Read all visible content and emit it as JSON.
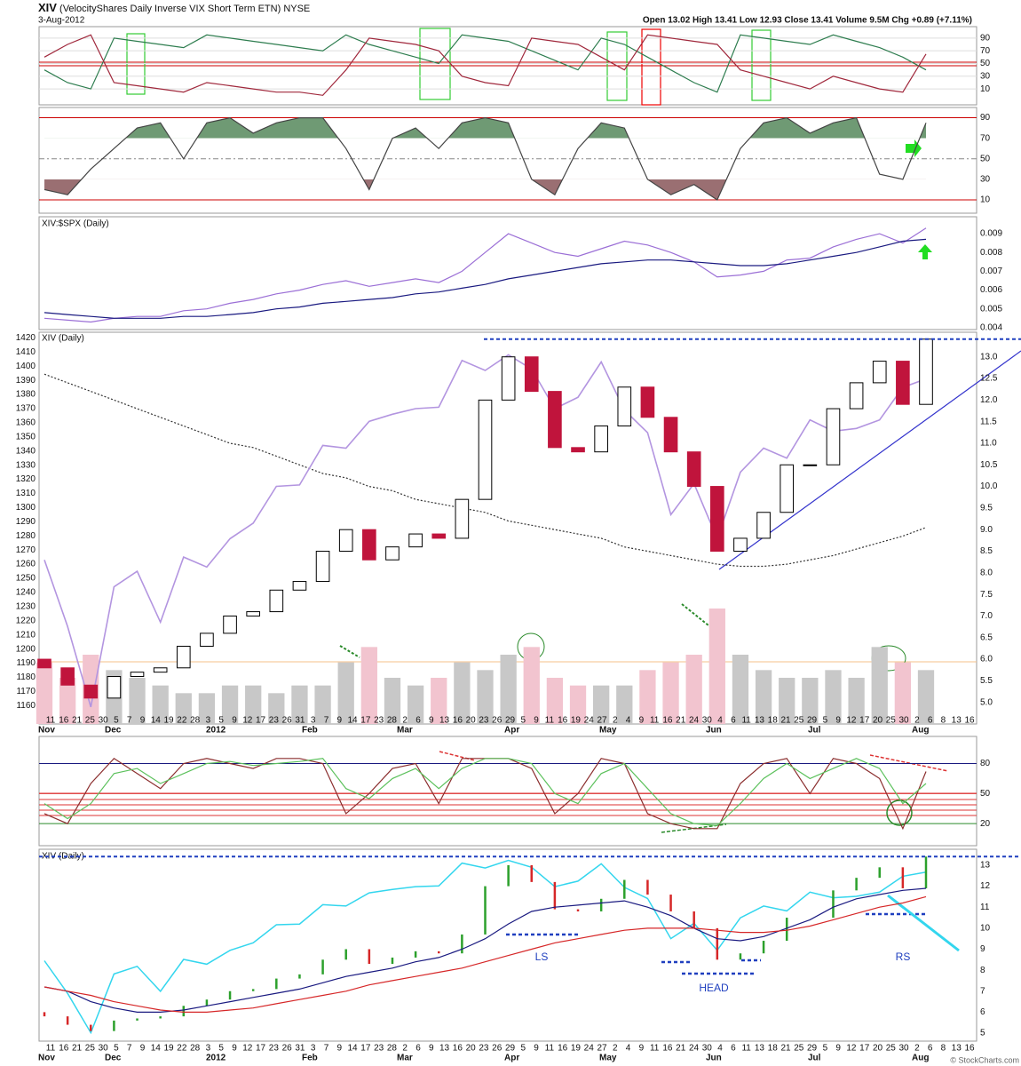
{
  "header": {
    "symbol": "XIV",
    "name": "(VelocityShares Daily Inverse VIX Short Term ETN)",
    "exchange": "NYSE",
    "date": "3-Aug-2012",
    "quote": "Open 13.02  High 13.41  Low 12.93  Close 13.41  Volume 9.5M  Chg +0.89 (+7.11%)",
    "credit": "© StockCharts.com"
  },
  "time_axis": {
    "days": [
      11,
      16,
      21,
      25,
      30,
      5,
      7,
      9,
      14,
      19,
      22,
      28,
      3,
      5,
      9,
      12,
      17,
      23,
      26,
      31,
      3,
      7,
      9,
      14,
      17,
      23,
      28,
      2,
      6,
      9,
      13,
      16,
      20,
      23,
      26,
      29,
      5,
      9,
      11,
      16,
      19,
      24,
      27,
      2,
      4,
      9,
      11,
      16,
      21,
      24,
      30,
      4,
      6,
      11,
      13,
      18,
      21,
      25,
      29,
      5,
      9,
      12,
      17,
      20,
      25,
      30,
      2,
      6,
      8,
      13,
      16
    ],
    "months": [
      "Nov",
      "Dec",
      "2012",
      "Feb",
      "Mar",
      "Apr",
      "May",
      "Jun",
      "Jul",
      "Aug"
    ]
  },
  "annotations": {
    "left_shoulder": "LS",
    "head": "HEAD",
    "right_shoulder": "RS"
  },
  "chart_data": [
    {
      "type": "line",
      "ylim": [
        -15,
        108
      ],
      "yticks": [
        10,
        30,
        50,
        70,
        90
      ],
      "series": [
        {
          "color": "#2e7d4f",
          "values": [
            40,
            20,
            10,
            90,
            85,
            80,
            75,
            95,
            90,
            85,
            80,
            75,
            70,
            95,
            80,
            70,
            60,
            50,
            95,
            90,
            85,
            70,
            55,
            40,
            90,
            80,
            60,
            40,
            20,
            5,
            95,
            90,
            85,
            80,
            95,
            85,
            75,
            60,
            40
          ]
        },
        {
          "color": "#a0283c",
          "values": [
            60,
            80,
            95,
            20,
            15,
            10,
            5,
            20,
            15,
            10,
            5,
            5,
            0,
            40,
            90,
            85,
            80,
            70,
            30,
            20,
            15,
            90,
            85,
            80,
            60,
            40,
            95,
            90,
            85,
            80,
            40,
            30,
            20,
            10,
            30,
            20,
            10,
            5,
            65
          ]
        }
      ]
    },
    {
      "type": "line",
      "ylim": [
        -3,
        100
      ],
      "yticks": [
        10,
        30,
        50,
        70,
        90
      ],
      "fill_above_color": "#6f9a74",
      "fill_below_color": "#9a6f72",
      "series": [
        {
          "color": "#444444",
          "values": [
            20,
            15,
            40,
            60,
            80,
            85,
            50,
            85,
            90,
            75,
            85,
            90,
            90,
            60,
            20,
            70,
            80,
            60,
            85,
            90,
            85,
            30,
            15,
            60,
            85,
            80,
            30,
            15,
            25,
            10,
            60,
            85,
            90,
            75,
            85,
            90,
            35,
            30,
            85
          ]
        }
      ]
    },
    {
      "type": "line",
      "title": "XIV:$SPX (Daily)",
      "ylim": [
        0.0039,
        0.0099
      ],
      "yticks": [
        0.004,
        0.005,
        0.006,
        0.007,
        0.008,
        0.009
      ],
      "series": [
        {
          "color": "#9b6fd6",
          "values": [
            0.0045,
            0.0044,
            0.0043,
            0.0045,
            0.0046,
            0.0046,
            0.0049,
            0.005,
            0.0053,
            0.0055,
            0.0058,
            0.006,
            0.0063,
            0.0065,
            0.0062,
            0.0064,
            0.0066,
            0.0064,
            0.007,
            0.008,
            0.009,
            0.0085,
            0.008,
            0.0078,
            0.0082,
            0.0086,
            0.0084,
            0.008,
            0.0075,
            0.0067,
            0.0068,
            0.007,
            0.0076,
            0.0077,
            0.0083,
            0.0087,
            0.009,
            0.0085,
            0.0093
          ]
        },
        {
          "color": "#1a1a80",
          "values": [
            0.0048,
            0.0047,
            0.0046,
            0.0045,
            0.0045,
            0.0045,
            0.0046,
            0.0046,
            0.0047,
            0.0048,
            0.005,
            0.0051,
            0.0053,
            0.0054,
            0.0055,
            0.0056,
            0.0058,
            0.0059,
            0.0061,
            0.0063,
            0.0066,
            0.0068,
            0.007,
            0.0072,
            0.0074,
            0.0075,
            0.0076,
            0.0076,
            0.0075,
            0.0074,
            0.0073,
            0.0073,
            0.0074,
            0.0076,
            0.0078,
            0.008,
            0.0083,
            0.0086,
            0.0087
          ]
        }
      ]
    },
    {
      "type": "candlestick",
      "title": "XIV (Daily)",
      "ylim": [
        1147,
        1424
      ],
      "yticks": [
        1160,
        1170,
        1180,
        1190,
        1200,
        1210,
        1220,
        1230,
        1240,
        1250,
        1260,
        1270,
        1280,
        1290,
        1300,
        1310,
        1320,
        1330,
        1340,
        1350,
        1360,
        1370,
        1380,
        1390,
        1400,
        1410,
        1420
      ],
      "y2lim": [
        4.5,
        13.57
      ],
      "y2ticks": [
        {
          "value": 5,
          "label": "5.0"
        },
        {
          "value": 5.5,
          "label": "5.5"
        },
        {
          "value": 6,
          "label": "6.0"
        },
        {
          "value": 6.5,
          "label": "6.5"
        },
        {
          "value": 7,
          "label": "7.0"
        },
        {
          "value": 7.5,
          "label": "7.5"
        },
        {
          "value": 8,
          "label": "8.0"
        },
        {
          "value": 8.5,
          "label": "8.5"
        },
        {
          "value": 9,
          "label": "9.0"
        },
        {
          "value": 9.5,
          "label": "9.5"
        },
        {
          "value": 10,
          "label": "10.0"
        },
        {
          "value": 10.5,
          "label": "10.5"
        },
        {
          "value": 11,
          "label": "11.0"
        },
        {
          "value": 11.5,
          "label": "11.5"
        },
        {
          "value": 12,
          "label": "12.0"
        },
        {
          "value": 12.5,
          "label": "12.5"
        },
        {
          "value": 13,
          "label": "13.0"
        }
      ],
      "up_color": "#ffffff",
      "down_color": "#c0143c",
      "volume_up_color": "#c8c8c8",
      "volume_down_color": "#f2c4cf",
      "open": [
        6.0,
        5.8,
        5.4,
        5.1,
        5.6,
        5.7,
        5.8,
        6.3,
        6.6,
        7.0,
        7.1,
        7.6,
        7.8,
        8.5,
        9.0,
        8.3,
        8.6,
        8.9,
        8.8,
        9.7,
        12.0,
        13.0,
        12.2,
        10.9,
        10.8,
        11.4,
        12.3,
        11.6,
        10.8,
        10.0,
        8.5,
        8.8,
        9.4,
        10.5,
        10.5,
        11.8,
        12.4,
        12.9,
        11.9
      ],
      "close": [
        5.8,
        5.4,
        5.1,
        5.6,
        5.7,
        5.8,
        6.3,
        6.6,
        7.0,
        7.1,
        7.6,
        7.8,
        8.5,
        9.0,
        8.3,
        8.6,
        8.9,
        8.8,
        9.7,
        12.0,
        13.0,
        12.2,
        10.9,
        10.8,
        11.4,
        12.3,
        11.6,
        10.8,
        10.0,
        8.5,
        8.8,
        9.4,
        10.5,
        10.5,
        11.8,
        12.4,
        12.9,
        11.9,
        13.41
      ],
      "volume": [
        8,
        6,
        9,
        7,
        6,
        5,
        4,
        4,
        5,
        5,
        4,
        5,
        5,
        8,
        10,
        6,
        5,
        6,
        8,
        7,
        9,
        10,
        6,
        5,
        5,
        5,
        7,
        8,
        9,
        15,
        9,
        7,
        6,
        6,
        7,
        6,
        10,
        8,
        7
      ],
      "overlay": {
        "color": "#b395e0",
        "values": [
          1263,
          1216,
          1159,
          1244,
          1255,
          1219,
          1265,
          1258,
          1278,
          1289,
          1315,
          1316,
          1344,
          1342,
          1361,
          1366,
          1370,
          1371,
          1404,
          1397,
          1408,
          1398,
          1370,
          1378,
          1403,
          1369,
          1353,
          1295,
          1317,
          1278,
          1325,
          1342,
          1335,
          1362,
          1354,
          1356,
          1362,
          1385,
          1391
        ]
      },
      "ma": {
        "color": "#333333",
        "values": [
          12.6,
          12.4,
          12.2,
          12.0,
          11.8,
          11.6,
          11.4,
          11.2,
          11.0,
          10.9,
          10.7,
          10.5,
          10.3,
          10.2,
          10.0,
          9.9,
          9.7,
          9.6,
          9.5,
          9.4,
          9.2,
          9.1,
          9.0,
          8.9,
          8.8,
          8.6,
          8.5,
          8.4,
          8.3,
          8.2,
          8.15,
          8.15,
          8.2,
          8.3,
          8.4,
          8.55,
          8.7,
          8.85,
          9.05
        ]
      }
    },
    {
      "type": "line",
      "ylim": [
        -2,
        107
      ],
      "yticks": [
        20,
        50,
        80
      ],
      "series": [
        {
          "color": "#8b2e2e",
          "values": [
            30,
            20,
            60,
            85,
            70,
            55,
            80,
            85,
            80,
            75,
            85,
            85,
            80,
            30,
            50,
            75,
            80,
            40,
            85,
            85,
            85,
            75,
            30,
            50,
            85,
            80,
            30,
            20,
            15,
            15,
            60,
            80,
            85,
            50,
            85,
            80,
            65,
            15,
            72
          ]
        },
        {
          "color": "#5cc15c",
          "values": [
            40,
            25,
            40,
            70,
            75,
            60,
            70,
            80,
            82,
            78,
            80,
            82,
            85,
            55,
            45,
            65,
            75,
            55,
            75,
            85,
            85,
            80,
            50,
            40,
            70,
            80,
            55,
            30,
            20,
            18,
            40,
            65,
            80,
            65,
            75,
            85,
            75,
            40,
            60
          ]
        }
      ]
    },
    {
      "type": "line",
      "title": "XIV (Daily)",
      "ylim": [
        4.62,
        13.76
      ],
      "yticks": [
        5,
        6,
        7,
        8,
        9,
        10,
        11,
        12,
        13
      ],
      "price_bars": true,
      "overlay_color": "#33d6ee",
      "up_color": "#2ca02c",
      "down_color": "#d62728",
      "series": [
        {
          "color": "#1a1a80",
          "values": [
            7.2,
            7.0,
            6.5,
            6.2,
            6.0,
            6.0,
            6.1,
            6.3,
            6.5,
            6.7,
            6.9,
            7.1,
            7.4,
            7.7,
            7.9,
            8.1,
            8.4,
            8.6,
            9.0,
            9.5,
            10.2,
            10.8,
            11.0,
            11.1,
            11.2,
            11.3,
            11.0,
            10.6,
            10.0,
            9.5,
            9.4,
            9.6,
            10.0,
            10.4,
            11.0,
            11.4,
            11.6,
            11.8,
            11.9
          ]
        },
        {
          "color": "#d62728",
          "values": [
            7.2,
            7.0,
            6.8,
            6.5,
            6.3,
            6.1,
            6.0,
            6.0,
            6.1,
            6.2,
            6.4,
            6.6,
            6.8,
            7.0,
            7.3,
            7.5,
            7.7,
            7.9,
            8.1,
            8.4,
            8.7,
            9.0,
            9.3,
            9.5,
            9.7,
            9.9,
            10.0,
            10.0,
            10.0,
            9.9,
            9.8,
            9.8,
            9.9,
            10.1,
            10.4,
            10.7,
            11.0,
            11.2,
            11.5
          ]
        }
      ]
    }
  ]
}
